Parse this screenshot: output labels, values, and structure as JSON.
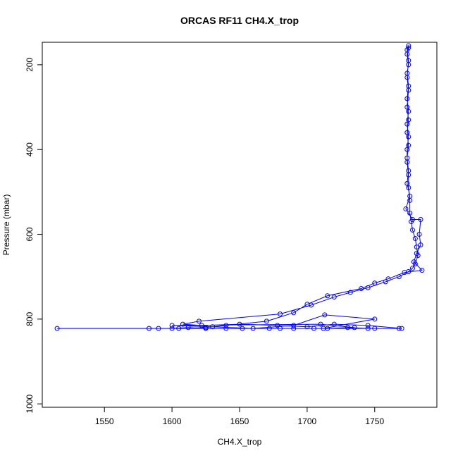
{
  "chart_data": {
    "type": "line",
    "markers": true,
    "title": "ORCAS RF11 CH4.X_trop",
    "x_label": "CH4.X_trop",
    "y_label": "Pressure (mbar)",
    "color": "#0000ff",
    "y_reversed": true,
    "xlim": [
      1504,
      1796
    ],
    "ylim": [
      147,
      1008
    ],
    "xticks": [
      1550,
      1600,
      1650,
      1700,
      1750
    ],
    "yticks": [
      200,
      400,
      600,
      800,
      1000
    ],
    "x": [
      1515,
      1768,
      1583,
      1600,
      1612,
      1625,
      1640,
      1652,
      1672,
      1690,
      1705,
      1715,
      1730,
      1745,
      1750,
      1770,
      1745,
      1720,
      1700,
      1678,
      1650,
      1622,
      1608,
      1620,
      1680,
      1703,
      1720,
      1732,
      1745,
      1758,
      1768,
      1775,
      1778,
      1780,
      1782,
      1781,
      1780,
      1778,
      1777,
      1776,
      1776,
      1775,
      1775,
      1774,
      1774,
      1775,
      1774,
      1775,
      1774,
      1775,
      1774,
      1775,
      1774,
      1775,
      1775,
      1774,
      1775,
      1774,
      1775,
      1774,
      1775,
      1774,
      1775,
      1774,
      1775,
      1774,
      1776,
      1773,
      1778,
      1784,
      1783,
      1784,
      1781,
      1779,
      1785,
      1772,
      1760,
      1750,
      1740,
      1715,
      1700,
      1690,
      1670,
      1640,
      1625,
      1605,
      1590,
      1680,
      1712,
      1750,
      1713,
      1690,
      1660,
      1630,
      1600,
      1710,
      1735
    ],
    "values": [
      822,
      822,
      822,
      822,
      820,
      822,
      822,
      822,
      822,
      822,
      822,
      822,
      820,
      822,
      822,
      822,
      815,
      812,
      818,
      815,
      812,
      815,
      812,
      805,
      788,
      767,
      748,
      737,
      726,
      712,
      700,
      688,
      680,
      670,
      650,
      630,
      610,
      590,
      570,
      550,
      520,
      490,
      460,
      430,
      400,
      370,
      340,
      310,
      280,
      250,
      220,
      200,
      175,
      160,
      155,
      165,
      190,
      230,
      260,
      300,
      330,
      360,
      390,
      420,
      450,
      480,
      510,
      540,
      565,
      565,
      600,
      625,
      645,
      665,
      685,
      690,
      705,
      715,
      728,
      745,
      765,
      785,
      805,
      815,
      820,
      822,
      822,
      822,
      822,
      800,
      790,
      815,
      822,
      818,
      815,
      812,
      820
    ]
  }
}
